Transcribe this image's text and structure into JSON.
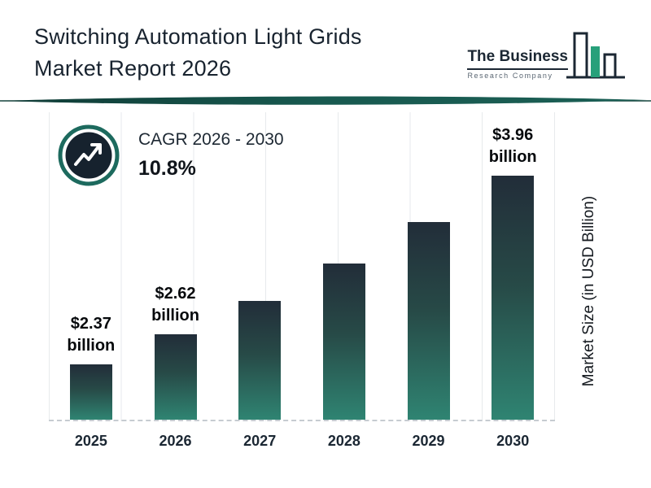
{
  "header": {
    "title_line1": "Switching Automation Light Grids",
    "title_line2": "Market Report 2026",
    "logo": {
      "line1": "The Business",
      "line2": "Research Company"
    }
  },
  "cagr": {
    "label": "CAGR 2026 - 2030",
    "value": "10.8%"
  },
  "chart_data": {
    "type": "bar",
    "title": "Switching Automation Light Grids Market Report 2026",
    "categories": [
      "2025",
      "2026",
      "2027",
      "2028",
      "2029",
      "2030"
    ],
    "values": [
      2.37,
      2.62,
      2.9,
      3.22,
      3.57,
      3.96
    ],
    "values_unit": "USD billion",
    "bar_labels": [
      {
        "value": "$2.37",
        "unit": "billion"
      },
      {
        "value": "$2.62",
        "unit": "billion"
      },
      null,
      null,
      null,
      {
        "value": "$3.96",
        "unit": "billion"
      }
    ],
    "xlabel": "",
    "ylabel": "Market Size (in USD Billion)",
    "ylim": [
      1.9,
      3.96
    ],
    "grid": "vertical",
    "legend": "none",
    "colors": {
      "bar_gradient_top": "#232e3a",
      "bar_gradient_bottom": "#2f8472",
      "accent_teal": "#1b5e54",
      "title_text": "#18232f"
    }
  }
}
